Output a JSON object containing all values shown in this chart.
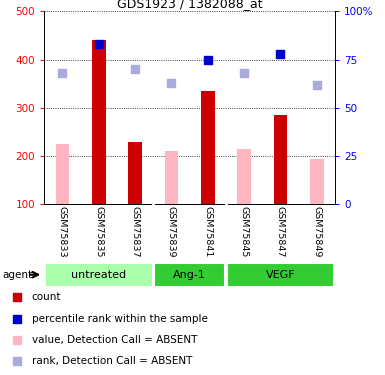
{
  "title": "GDS1923 / 1382088_at",
  "samples": [
    "GSM75833",
    "GSM75835",
    "GSM75837",
    "GSM75839",
    "GSM75841",
    "GSM75845",
    "GSM75847",
    "GSM75849"
  ],
  "dark_red_bars": {
    "indices": [
      1,
      2,
      4,
      6
    ],
    "values": [
      440,
      230,
      335,
      285
    ]
  },
  "pink_bars": {
    "indices": [
      0,
      3,
      5,
      7
    ],
    "values": [
      225,
      210,
      215,
      195
    ]
  },
  "dark_blue_squares": {
    "indices": [
      1,
      4,
      6
    ],
    "values": [
      83,
      75,
      78
    ]
  },
  "light_blue_squares": {
    "indices": [
      0,
      2,
      3,
      5,
      7
    ],
    "values": [
      68,
      70,
      63,
      68,
      62
    ]
  },
  "ylim_left": [
    100,
    500
  ],
  "ylim_right": [
    0,
    100
  ],
  "yticks_left": [
    100,
    200,
    300,
    400,
    500
  ],
  "yticks_right": [
    0,
    25,
    50,
    75,
    100
  ],
  "yticklabels_right": [
    "0",
    "25",
    "50",
    "75",
    "100%"
  ],
  "dark_red_color": "#CC0000",
  "pink_color": "#FFB6C1",
  "dark_blue_color": "#0000CC",
  "light_blue_color": "#AAAADD",
  "group_spans": [
    [
      0,
      2,
      "untreated",
      "#AAFFAA"
    ],
    [
      3,
      4,
      "Ang-1",
      "#33CC33"
    ],
    [
      5,
      7,
      "VEGF",
      "#33CC33"
    ]
  ],
  "legend_items": [
    {
      "label": "count",
      "color": "#CC0000",
      "marker": "s"
    },
    {
      "label": "percentile rank within the sample",
      "color": "#0000CC",
      "marker": "s"
    },
    {
      "label": "value, Detection Call = ABSENT",
      "color": "#FFB6C1",
      "marker": "s"
    },
    {
      "label": "rank, Detection Call = ABSENT",
      "color": "#AAAADD",
      "marker": "s"
    }
  ]
}
